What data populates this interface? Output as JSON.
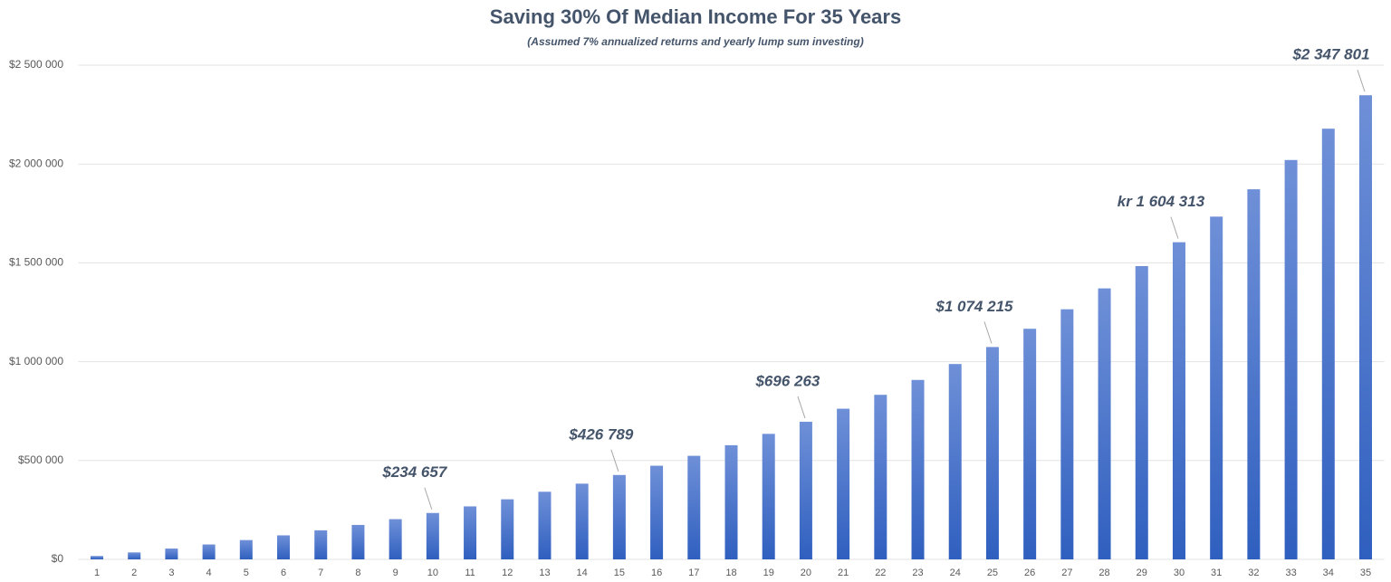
{
  "chart_data": {
    "type": "bar",
    "title": "Saving 30% Of Median Income For 35 Years",
    "subtitle": "(Assumed 7% annualized returns and yearly lump sum investing)",
    "categories": [
      "1",
      "2",
      "3",
      "4",
      "5",
      "6",
      "7",
      "8",
      "9",
      "10",
      "11",
      "12",
      "13",
      "14",
      "15",
      "16",
      "17",
      "18",
      "19",
      "20",
      "21",
      "22",
      "23",
      "24",
      "25",
      "26",
      "27",
      "28",
      "29",
      "30",
      "31",
      "32",
      "33",
      "34",
      "35"
    ],
    "values": [
      16986,
      35160,
      54607,
      75416,
      97681,
      121512,
      147002,
      174279,
      203464,
      234657,
      268107,
      303860,
      342116,
      383047,
      426789,
      473715,
      523861,
      577517,
      634930,
      696263,
      762091,
      832424,
      907678,
      988203,
      1074215,
      1166558,
      1265203,
      1370753,
      1483691,
      1604313,
      1733842,
      1872196,
      2020237,
      2178641,
      2347801
    ],
    "value_labels": [
      null,
      null,
      null,
      null,
      null,
      null,
      null,
      null,
      null,
      "$234 657",
      null,
      null,
      null,
      null,
      "$426 789",
      null,
      null,
      null,
      null,
      "$696 263",
      null,
      null,
      null,
      null,
      "$1 074 215",
      null,
      null,
      null,
      null,
      "kr 1 604 313",
      null,
      null,
      null,
      null,
      "$2 347 801"
    ],
    "color": "#4472c4",
    "ylim": [
      0,
      2500000
    ],
    "yticks": [
      {
        "value": 0,
        "label": "$0"
      },
      {
        "value": 500000,
        "label": "$500 000"
      },
      {
        "value": 1000000,
        "label": "$1 000 000"
      },
      {
        "value": 1500000,
        "label": "$1 500 000"
      },
      {
        "value": 2000000,
        "label": "$2 000 000"
      },
      {
        "value": 2500000,
        "label": "$2 500 000"
      }
    ],
    "grid": true
  }
}
